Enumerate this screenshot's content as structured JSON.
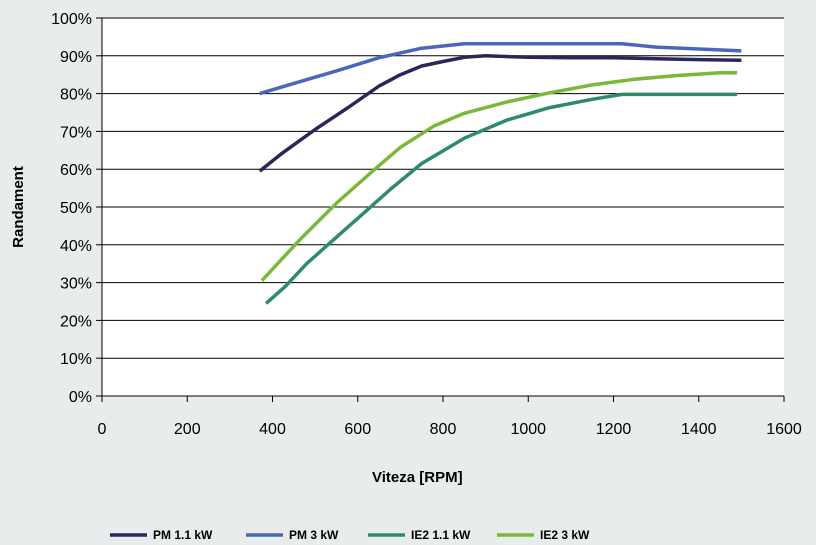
{
  "chart_data": {
    "type": "line",
    "xlabel": "Viteza [RPM]",
    "ylabel": "Randament",
    "xlim": [
      0,
      1600
    ],
    "ylim": [
      0,
      100
    ],
    "x_ticks": [
      0,
      200,
      400,
      600,
      800,
      1000,
      1200,
      1400,
      1600
    ],
    "y_ticks": [
      0,
      10,
      20,
      30,
      40,
      50,
      60,
      70,
      80,
      90,
      100
    ],
    "x_tick_labels": [
      "0",
      "200",
      "400",
      "600",
      "800",
      "1000",
      "1200",
      "1400",
      "1600"
    ],
    "y_tick_labels": [
      "0%",
      "10%",
      "20%",
      "30%",
      "40%",
      "50%",
      "60%",
      "70%",
      "80%",
      "90%",
      "100%"
    ],
    "grid": "horizontal",
    "legend_position": "bottom",
    "series": [
      {
        "name": "PM 1.1 kW",
        "color": "#2b2559",
        "x": [
          370,
          420,
          500,
          580,
          650,
          700,
          750,
          800,
          850,
          900,
          1000,
          1100,
          1200,
          1300,
          1400,
          1500
        ],
        "y": [
          59.5,
          64,
          70.5,
          76.5,
          82,
          85,
          87.3,
          88.5,
          89.6,
          90,
          89.6,
          89.5,
          89.5,
          89.2,
          89,
          88.8
        ]
      },
      {
        "name": "PM 3 kW",
        "color": "#4a68b9",
        "x": [
          370,
          450,
          550,
          650,
          750,
          850,
          950,
          1050,
          1150,
          1220,
          1300,
          1400,
          1500
        ],
        "y": [
          80,
          82.7,
          86,
          89.5,
          92,
          93.2,
          93.2,
          93.2,
          93.2,
          93.2,
          92.3,
          91.8,
          91.3
        ]
      },
      {
        "name": "IE2 1.1 kW",
        "color": "#2e8b6a",
        "x": [
          385,
          430,
          480,
          550,
          620,
          680,
          750,
          850,
          950,
          1050,
          1150,
          1220,
          1300,
          1400,
          1490
        ],
        "y": [
          24.5,
          29,
          35,
          42,
          49,
          55,
          61.5,
          68.2,
          73,
          76.3,
          78.5,
          79.8,
          79.8,
          79.8,
          79.8
        ]
      },
      {
        "name": "IE2 3 kW",
        "color": "#7ab83a",
        "x": [
          375,
          420,
          470,
          550,
          630,
          700,
          780,
          850,
          950,
          1050,
          1150,
          1250,
          1350,
          1450,
          1490
        ],
        "y": [
          30.5,
          36,
          42,
          51,
          59,
          65.8,
          71.5,
          74.8,
          77.8,
          80.2,
          82.3,
          83.8,
          84.8,
          85.5,
          85.5
        ]
      }
    ]
  }
}
